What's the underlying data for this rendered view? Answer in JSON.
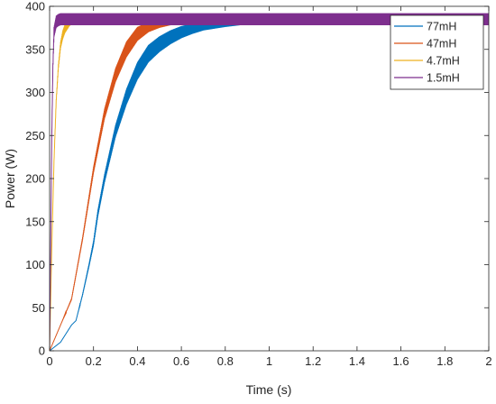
{
  "chart_data": {
    "type": "line",
    "title": "",
    "xlabel": "Time (s)",
    "ylabel": "Power (W)",
    "xlim": [
      0,
      2
    ],
    "ylim": [
      0,
      400
    ],
    "xticks": [
      0,
      0.2,
      0.4,
      0.6,
      0.8,
      1,
      1.2,
      1.4,
      1.6,
      1.8,
      2
    ],
    "xtick_labels": [
      "0",
      "0.2",
      "0.4",
      "0.6",
      "0.8",
      "1",
      "1.2",
      "1.4",
      "1.6",
      "1.8",
      "2"
    ],
    "yticks": [
      0,
      50,
      100,
      150,
      200,
      250,
      300,
      350,
      400
    ],
    "ytick_labels": [
      "0",
      "50",
      "100",
      "150",
      "200",
      "250",
      "300",
      "350",
      "400"
    ],
    "grid": false,
    "legend_position": "top-right",
    "series": [
      {
        "name": "77mH",
        "color": "#0072BD",
        "x": [
          0,
          0.05,
          0.1,
          0.12,
          0.15,
          0.18,
          0.2,
          0.22,
          0.25,
          0.3,
          0.35,
          0.4,
          0.45,
          0.5,
          0.55,
          0.6,
          0.65,
          0.7,
          0.8,
          0.9,
          1.0,
          1.2,
          1.4,
          1.6,
          1.8,
          2.0
        ],
        "y": [
          0,
          10,
          30,
          35,
          65,
          100,
          125,
          160,
          200,
          255,
          295,
          325,
          345,
          356,
          364,
          370,
          374,
          377,
          380,
          382,
          383,
          384,
          384,
          385,
          385,
          385
        ],
        "ripple_amplitude": [
          0,
          0,
          0,
          0,
          1,
          2,
          3,
          4,
          5,
          7,
          9,
          10,
          10,
          9,
          8,
          7,
          6,
          5,
          4,
          3,
          3,
          3,
          3,
          3,
          3,
          3
        ]
      },
      {
        "name": "47mH",
        "color": "#D95319",
        "x": [
          0,
          0.05,
          0.1,
          0.15,
          0.2,
          0.25,
          0.3,
          0.35,
          0.4,
          0.45,
          0.5,
          0.55,
          0.6,
          0.7,
          0.8,
          1.0,
          1.5,
          2.0
        ],
        "y": [
          0,
          30,
          60,
          130,
          210,
          275,
          320,
          350,
          368,
          376,
          380,
          382,
          383,
          384,
          384,
          385,
          385,
          385
        ],
        "ripple_amplitude": [
          0,
          0,
          1,
          2,
          4,
          6,
          8,
          9,
          8,
          6,
          5,
          4,
          3,
          3,
          3,
          3,
          3,
          3
        ]
      },
      {
        "name": "4.7mH",
        "color": "#EDB120",
        "x": [
          0,
          0.01,
          0.02,
          0.03,
          0.04,
          0.05,
          0.06,
          0.07,
          0.08,
          0.09,
          0.1,
          0.15,
          0.2,
          2.0
        ],
        "y": [
          0,
          120,
          220,
          290,
          330,
          355,
          367,
          374,
          378,
          381,
          383,
          384,
          385,
          385
        ],
        "ripple_amplitude": [
          0,
          0,
          1,
          2,
          3,
          4,
          5,
          5,
          5,
          4,
          4,
          4,
          4,
          4
        ]
      },
      {
        "name": "1.5mH",
        "color": "#7E2F8E",
        "x": [
          0,
          0.01,
          0.015,
          0.02,
          0.03,
          0.04,
          0.05,
          2.0
        ],
        "y": [
          0,
          250,
          330,
          370,
          382,
          384,
          385,
          385
        ],
        "ripple_amplitude": [
          0,
          2,
          4,
          6,
          7,
          7,
          7,
          7
        ]
      }
    ]
  }
}
